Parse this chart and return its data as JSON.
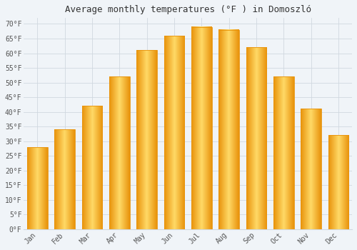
{
  "title": "Average monthly temperatures (°F ) in Domoszló",
  "months": [
    "Jan",
    "Feb",
    "Mar",
    "Apr",
    "May",
    "Jun",
    "Jul",
    "Aug",
    "Sep",
    "Oct",
    "Nov",
    "Dec"
  ],
  "values": [
    28,
    34,
    42,
    52,
    61,
    66,
    69,
    68,
    62,
    52,
    41,
    32
  ],
  "bar_color_center": "#FFD966",
  "bar_color_edge": "#E8920A",
  "background_color": "#f0f4f8",
  "plot_bg_color": "#f0f4f8",
  "grid_color": "#d0d8e0",
  "ylim": [
    0,
    72
  ],
  "yticks": [
    0,
    5,
    10,
    15,
    20,
    25,
    30,
    35,
    40,
    45,
    50,
    55,
    60,
    65,
    70
  ],
  "title_fontsize": 9,
  "tick_fontsize": 7,
  "font_family": "monospace",
  "tick_color": "#555555"
}
